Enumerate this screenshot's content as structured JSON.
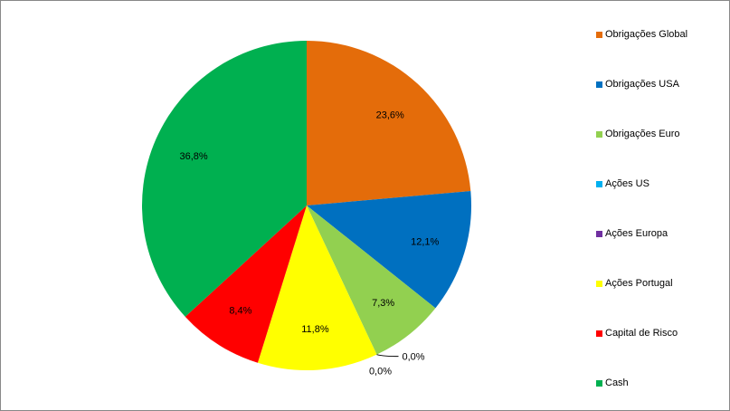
{
  "chart_data": {
    "type": "pie",
    "categories": [
      "Obrigações Global",
      "Obrigações USA",
      "Obrigações Euro",
      "Ações US",
      "Ações Europa",
      "Ações Portugal",
      "Capital de Risco",
      "Cash"
    ],
    "values": [
      23.6,
      12.1,
      7.3,
      0.0,
      0.0,
      11.8,
      8.4,
      36.8
    ],
    "labels": [
      "23,6%",
      "12,1%",
      "7,3%",
      "0,0%",
      "0,0%",
      "11,8%",
      "8,4%",
      "36,8%"
    ],
    "colors": [
      "#E46C0A",
      "#0070C0",
      "#92D050",
      "#00B0F0",
      "#7030A0",
      "#FFFF00",
      "#FF0000",
      "#00B050"
    ],
    "legend_position": "right",
    "start_angle_deg": 0,
    "direction": "clockwise"
  }
}
